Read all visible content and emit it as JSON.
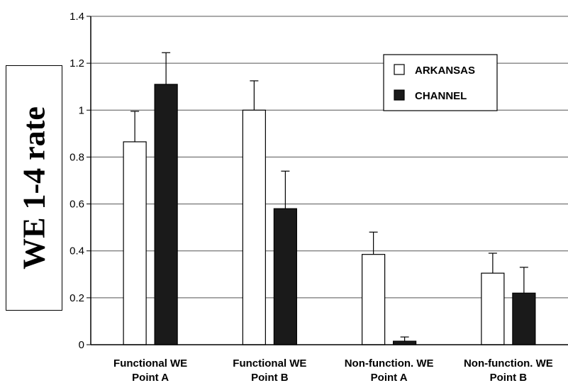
{
  "chart_data": {
    "type": "bar",
    "title": "",
    "xlabel": "",
    "ylabel": "WE 1-4 rate",
    "ylim": [
      0,
      1.4
    ],
    "yticks": [
      "0",
      "0.2",
      "0.4",
      "0.6",
      "0.8",
      "1",
      "1.2",
      "1.4"
    ],
    "grid": true,
    "legend_position": "top-right",
    "categories": [
      [
        "Functional WE",
        "Point A"
      ],
      [
        "Functional WE",
        "Point B"
      ],
      [
        "Non-function. WE",
        "Point A"
      ],
      [
        "Non-function. WE",
        "Point B"
      ]
    ],
    "series": [
      {
        "name": "ARKANSAS",
        "color": "#ffffff",
        "values": [
          0.865,
          1.0,
          0.385,
          0.305
        ],
        "errors": [
          0.13,
          0.125,
          0.095,
          0.085
        ]
      },
      {
        "name": "CHANNEL",
        "color": "#1a1a1a",
        "values": [
          1.11,
          0.58,
          0.015,
          0.22
        ],
        "errors": [
          0.135,
          0.16,
          0.018,
          0.11
        ]
      }
    ]
  }
}
